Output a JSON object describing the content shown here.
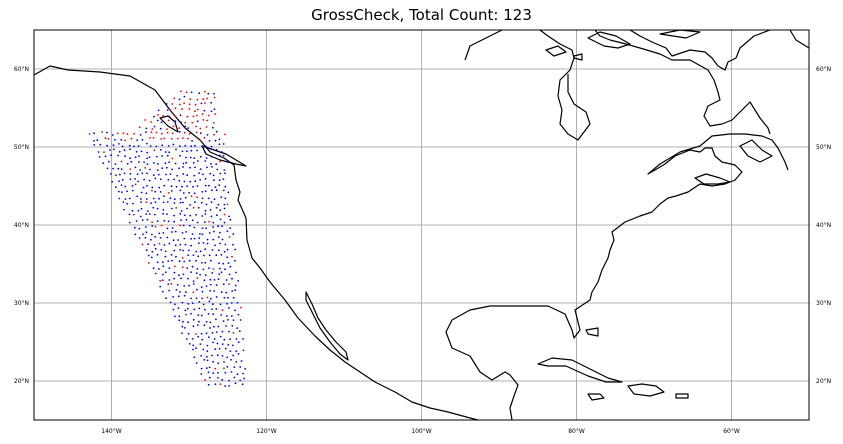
{
  "title": "GrossCheck, Total Count: 123",
  "map": {
    "lon_range": [
      -150,
      -50
    ],
    "lat_range": [
      15,
      65
    ],
    "gridlines": true,
    "lon_ticks": [
      {
        "value": -140,
        "label": "140°W"
      },
      {
        "value": -120,
        "label": "120°W"
      },
      {
        "value": -100,
        "label": "100°W"
      },
      {
        "value": -80,
        "label": "80°W"
      },
      {
        "value": -60,
        "label": "60°W"
      }
    ],
    "lat_ticks": [
      {
        "value": 20,
        "label": "20°N"
      },
      {
        "value": 30,
        "label": "30°N"
      },
      {
        "value": 40,
        "label": "40°N"
      },
      {
        "value": 50,
        "label": "50°N"
      },
      {
        "value": 60,
        "label": "60°N"
      }
    ],
    "colors": {
      "passed": "#0000ff",
      "flagged": "#ff0000",
      "coast": "#000000",
      "grid": "#b0b0b0"
    },
    "flagged_count": 123
  }
}
